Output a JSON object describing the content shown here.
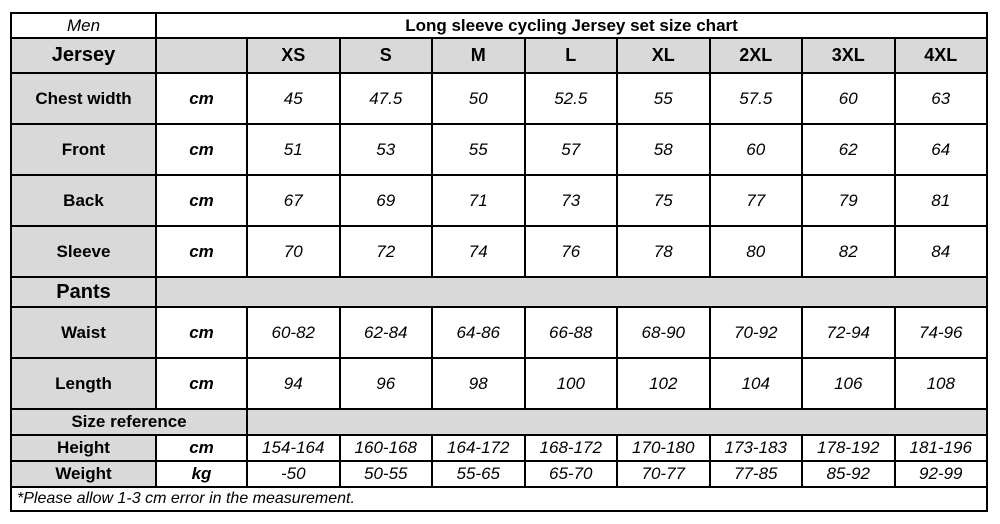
{
  "page": {
    "footnote": "*Please allow 1-3 cm error in the measurement."
  },
  "table": {
    "gender": "Men",
    "title": "Long sleeve cycling Jersey set size chart",
    "sizes": [
      "XS",
      "S",
      "M",
      "L",
      "XL",
      "2XL",
      "3XL",
      "4XL"
    ],
    "sections": [
      {
        "name": "Jersey",
        "rows": [
          {
            "label": "Chest width",
            "unit": "cm",
            "values": [
              "45",
              "47.5",
              "50",
              "52.5",
              "55",
              "57.5",
              "60",
              "63"
            ]
          },
          {
            "label": "Front",
            "unit": "cm",
            "values": [
              "51",
              "53",
              "55",
              "57",
              "58",
              "60",
              "62",
              "64"
            ]
          },
          {
            "label": "Back",
            "unit": "cm",
            "values": [
              "67",
              "69",
              "71",
              "73",
              "75",
              "77",
              "79",
              "81"
            ]
          },
          {
            "label": "Sleeve",
            "unit": "cm",
            "values": [
              "70",
              "72",
              "74",
              "76",
              "78",
              "80",
              "82",
              "84"
            ]
          }
        ]
      },
      {
        "name": "Pants",
        "rows": [
          {
            "label": "Waist",
            "unit": "cm",
            "values": [
              "60-82",
              "62-84",
              "64-86",
              "66-88",
              "68-90",
              "70-92",
              "72-94",
              "74-96"
            ]
          },
          {
            "label": "Length",
            "unit": "cm",
            "values": [
              "94",
              "96",
              "98",
              "100",
              "102",
              "104",
              "106",
              "108"
            ]
          }
        ]
      },
      {
        "name": "Size reference",
        "rows": [
          {
            "label": "Height",
            "unit": "cm",
            "values": [
              "154-164",
              "160-168",
              "164-172",
              "168-172",
              "170-180",
              "173-183",
              "178-192",
              "181-196"
            ]
          },
          {
            "label": "Weight",
            "unit": "kg",
            "values": [
              "-50",
              "50-55",
              "55-65",
              "65-70",
              "70-77",
              "77-85",
              "85-92",
              "92-99"
            ]
          }
        ]
      }
    ]
  },
  "colors": {
    "header_bg": "#d9d9d9",
    "border": "#000000",
    "cell_bg": "#ffffff"
  }
}
